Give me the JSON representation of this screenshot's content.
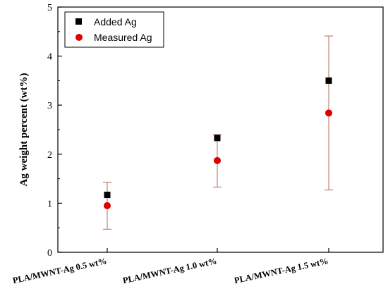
{
  "chart_data": {
    "type": "scatter",
    "title": "",
    "xlabel": "",
    "ylabel": "Ag weight percent (wt%)",
    "ylim": [
      0,
      5
    ],
    "yticks": [
      "0",
      "1",
      "2",
      "3",
      "4",
      "5"
    ],
    "categories": [
      "PLA/MWNT-Ag 0.5 wt%",
      "PLA/MWNT-Ag 1.0 wt%",
      "PLA/MWNT-Ag 1.5 wt%"
    ],
    "series": [
      {
        "name": "Added Ag",
        "marker": "square",
        "color": "#000000",
        "values": [
          1.17,
          2.33,
          3.5
        ]
      },
      {
        "name": "Measured Ag",
        "marker": "circle",
        "color": "#e00000",
        "values": [
          0.95,
          1.87,
          2.84
        ],
        "error_low": [
          0.47,
          1.33,
          1.27
        ],
        "error_high": [
          1.43,
          2.4,
          4.41
        ]
      }
    ],
    "error_bar_color": "#b06a5a",
    "legend_position": "top-left",
    "grid": false
  }
}
